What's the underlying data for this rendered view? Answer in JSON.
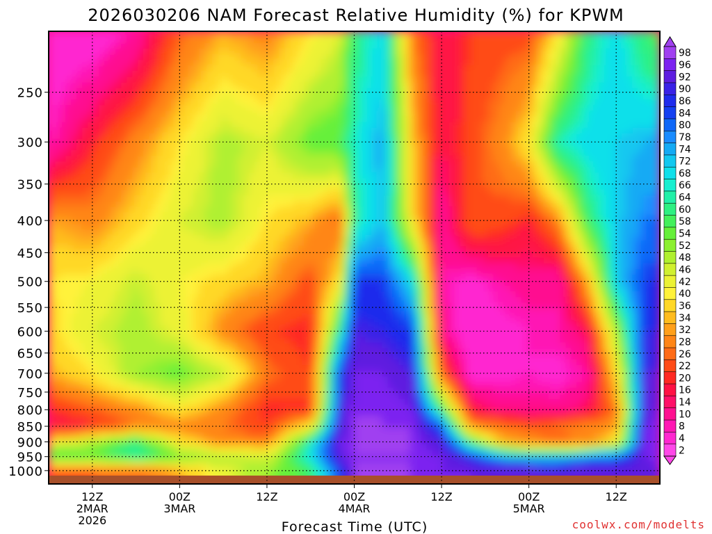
{
  "chart_data": {
    "type": "heatmap",
    "title": "2026030206 NAM Forecast Relative Humidity (%) for KPWM",
    "xlabel": "Forecast Time (UTC)",
    "ylabel": "",
    "y_ticks": [
      {
        "p": 250,
        "label": "250"
      },
      {
        "p": 300,
        "label": "300"
      },
      {
        "p": 350,
        "label": "350"
      },
      {
        "p": 400,
        "label": "400"
      },
      {
        "p": 450,
        "label": "450"
      },
      {
        "p": 500,
        "label": "500"
      },
      {
        "p": 550,
        "label": "550"
      },
      {
        "p": 600,
        "label": "600"
      },
      {
        "p": 650,
        "label": "650"
      },
      {
        "p": 700,
        "label": "700"
      },
      {
        "p": 750,
        "label": "750"
      },
      {
        "p": 800,
        "label": "800"
      },
      {
        "p": 850,
        "label": "850"
      },
      {
        "p": 900,
        "label": "900"
      },
      {
        "p": 950,
        "label": "950"
      },
      {
        "p": 1000,
        "label": "1000"
      }
    ],
    "x_ticks": [
      {
        "h": 6,
        "lines": [
          "12Z",
          "2MAR",
          "2026"
        ]
      },
      {
        "h": 18,
        "lines": [
          "00Z",
          "3MAR"
        ]
      },
      {
        "h": 30,
        "lines": [
          "12Z"
        ]
      },
      {
        "h": 42,
        "lines": [
          "00Z",
          "4MAR"
        ]
      },
      {
        "h": 54,
        "lines": [
          "12Z"
        ]
      },
      {
        "h": 66,
        "lines": [
          "00Z",
          "5MAR"
        ]
      },
      {
        "h": 78,
        "lines": [
          "12Z"
        ]
      }
    ],
    "x_range_hours": [
      0,
      84
    ],
    "p_range": [
      200,
      1050
    ],
    "grid": "dotted",
    "colorbar": {
      "position": "right",
      "labels": [
        "98",
        "96",
        "92",
        "90",
        "86",
        "84",
        "80",
        "78",
        "74",
        "72",
        "68",
        "66",
        "64",
        "60",
        "58",
        "54",
        "52",
        "48",
        "46",
        "42",
        "40",
        "36",
        "34",
        "32",
        "28",
        "26",
        "22",
        "20",
        "16",
        "14",
        "10",
        "8",
        "4",
        "2"
      ],
      "colors": [
        "#a040f0",
        "#7c23f0",
        "#5e1ee0",
        "#3a22e6",
        "#1f2cec",
        "#1440f0",
        "#1068f8",
        "#1a8cff",
        "#14aaf4",
        "#12c8f0",
        "#10e0ea",
        "#18efd0",
        "#22f0a8",
        "#2ef082",
        "#44f05c",
        "#66f03a",
        "#8cf030",
        "#b0f030",
        "#d0f030",
        "#ecf234",
        "#fff23a",
        "#ffd828",
        "#ffbc1e",
        "#ffa01a",
        "#ff8616",
        "#ff6c16",
        "#ff4c18",
        "#ff2a22",
        "#ff1244",
        "#ff1068",
        "#ff1090",
        "#ff18b4",
        "#ff28d0",
        "#ff48e8"
      ]
    },
    "series": [
      {
        "name": "RH (%) vs forecast hour and pressure (hPa)",
        "hours": [
          0,
          6,
          12,
          18,
          24,
          30,
          36,
          40,
          42,
          46,
          50,
          54,
          58,
          62,
          66,
          70,
          74,
          78,
          82,
          84
        ],
        "levels_hPa": [
          200,
          300,
          400,
          500,
          600,
          700,
          800,
          850,
          900,
          950,
          1000
        ],
        "values": [
          [
            4,
            4,
            10,
            26,
            34,
            30,
            40,
            46,
            62,
            70,
            30,
            16,
            22,
            24,
            24,
            40,
            62,
            70,
            60,
            56
          ],
          [
            8,
            20,
            30,
            40,
            50,
            46,
            56,
            58,
            66,
            76,
            36,
            16,
            24,
            30,
            40,
            66,
            70,
            72,
            74,
            76
          ],
          [
            34,
            30,
            38,
            46,
            50,
            40,
            34,
            26,
            64,
            74,
            40,
            10,
            26,
            24,
            20,
            30,
            60,
            72,
            80,
            80
          ],
          [
            40,
            42,
            48,
            42,
            38,
            34,
            24,
            40,
            86,
            86,
            70,
            10,
            6,
            10,
            12,
            10,
            34,
            72,
            86,
            86
          ],
          [
            38,
            46,
            50,
            44,
            30,
            22,
            20,
            64,
            92,
            90,
            86,
            12,
            4,
            6,
            8,
            10,
            16,
            50,
            90,
            90
          ],
          [
            34,
            40,
            52,
            56,
            48,
            28,
            22,
            86,
            96,
            96,
            92,
            26,
            6,
            6,
            8,
            6,
            10,
            38,
            92,
            92
          ],
          [
            20,
            26,
            30,
            40,
            30,
            20,
            22,
            90,
            98,
            98,
            96,
            60,
            18,
            14,
            12,
            12,
            16,
            28,
            94,
            96
          ],
          [
            16,
            20,
            28,
            30,
            28,
            22,
            40,
            92,
            98,
            98,
            98,
            84,
            30,
            28,
            26,
            28,
            30,
            32,
            96,
            98
          ],
          [
            40,
            50,
            62,
            40,
            30,
            30,
            66,
            96,
            98,
            98,
            98,
            92,
            60,
            36,
            30,
            26,
            30,
            40,
            98,
            98
          ],
          [
            60,
            58,
            66,
            56,
            50,
            46,
            70,
            94,
            98,
            98,
            98,
            96,
            88,
            76,
            72,
            74,
            78,
            82,
            96,
            98
          ],
          [
            24,
            26,
            26,
            34,
            44,
            52,
            60,
            86,
            98,
            98,
            98,
            96,
            96,
            94,
            94,
            92,
            94,
            94,
            94,
            96
          ]
        ]
      }
    ],
    "credit": "coolwx.com/modelts"
  }
}
